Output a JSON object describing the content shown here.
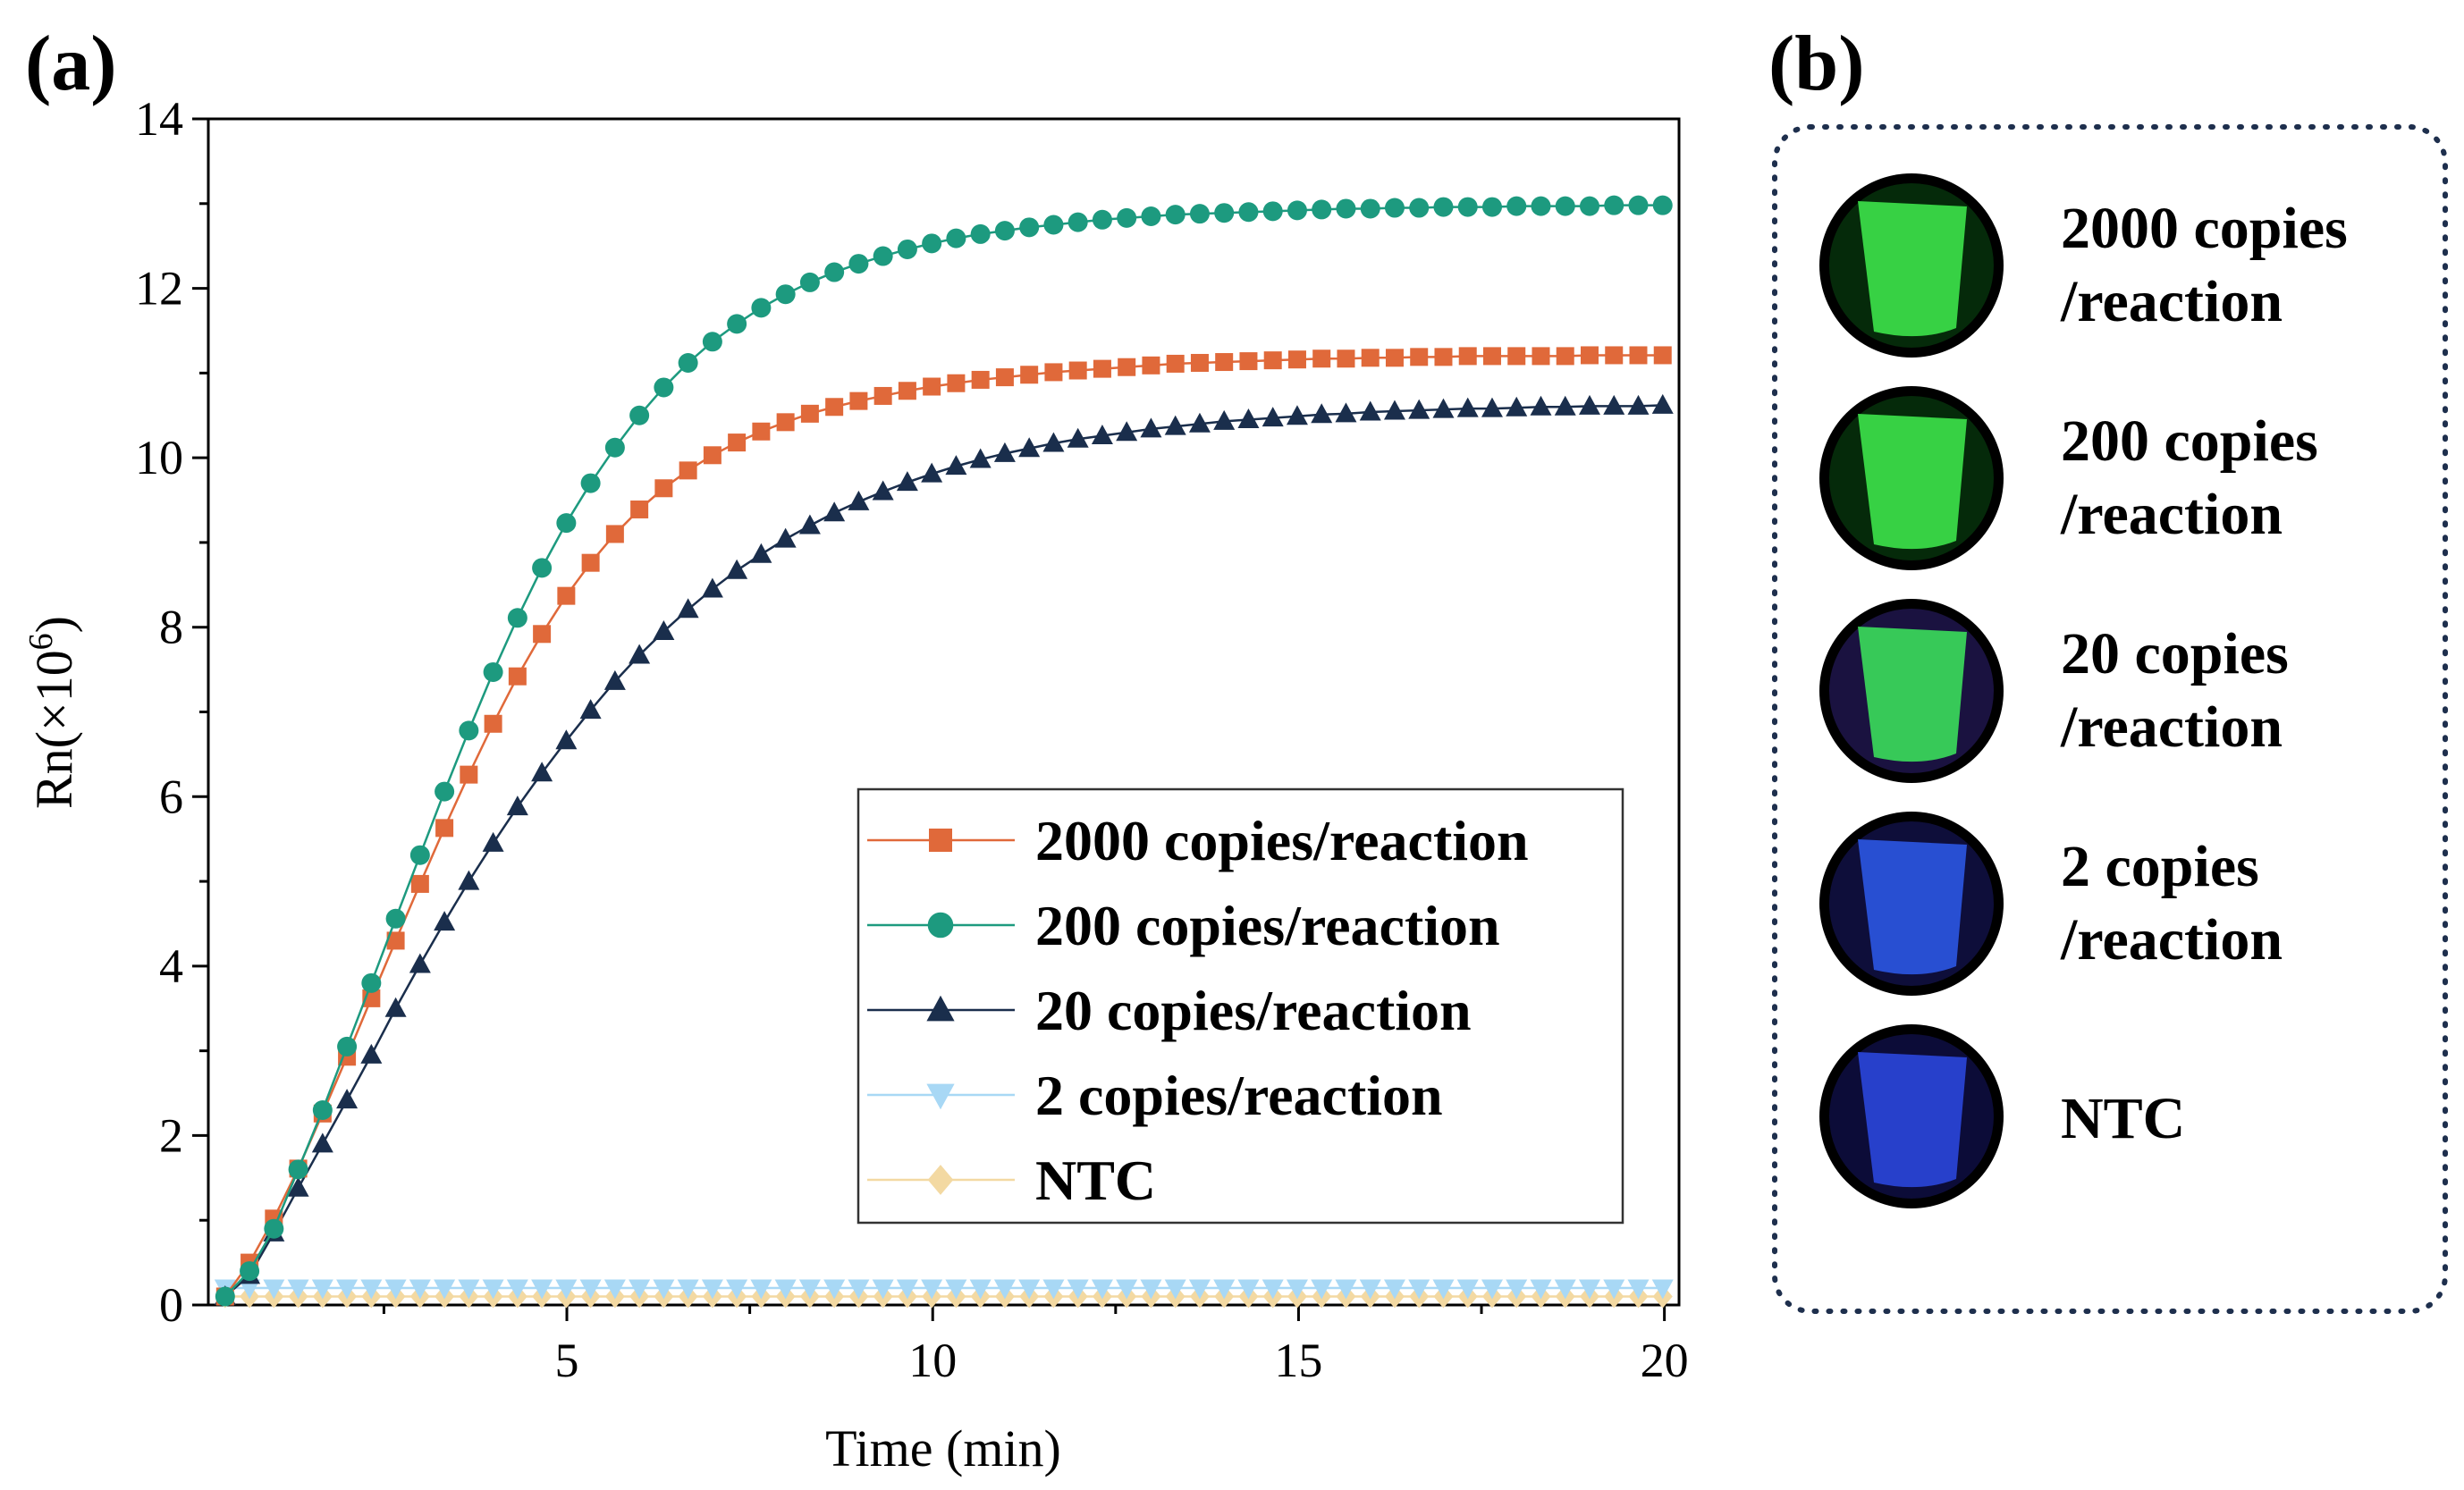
{
  "panel_a_label": "(a)",
  "panel_b_label": "(b)",
  "chart_data": {
    "type": "line",
    "xlabel": "Time (min)",
    "ylabel_base": "Rn(×10",
    "ylabel_exp": "6",
    "ylabel_close": ")",
    "xlim": [
      0.1,
      20.2
    ],
    "ylim": [
      0,
      14
    ],
    "xticks": [
      5,
      10,
      15,
      20
    ],
    "yticks": [
      0,
      2,
      4,
      6,
      8,
      10,
      12,
      14
    ],
    "legend_position": "lower-right",
    "series": [
      {
        "name": "2000 copies/reaction",
        "color": "#e0693a",
        "marker": "square",
        "values": [
          0.1,
          0.5,
          1.02,
          1.61,
          2.26,
          2.93,
          3.62,
          4.3,
          4.97,
          5.63,
          6.26,
          6.86,
          7.42,
          7.92,
          8.37,
          8.76,
          9.1,
          9.39,
          9.64,
          9.85,
          10.03,
          10.18,
          10.31,
          10.42,
          10.52,
          10.6,
          10.67,
          10.73,
          10.79,
          10.84,
          10.88,
          10.92,
          10.95,
          10.98,
          11.01,
          11.03,
          11.05,
          11.07,
          11.09,
          11.11,
          11.12,
          11.13,
          11.14,
          11.15,
          11.16,
          11.17,
          11.17,
          11.18,
          11.18,
          11.19,
          11.19,
          11.2,
          11.2,
          11.2,
          11.2,
          11.2,
          11.21,
          11.21,
          11.21,
          11.21
        ]
      },
      {
        "name": "200 copies/reaction",
        "color": "#1d9a7f",
        "marker": "circle",
        "values": [
          0.1,
          0.4,
          0.9,
          1.6,
          2.3,
          3.05,
          3.8,
          4.56,
          5.31,
          6.06,
          6.78,
          7.47,
          8.11,
          8.7,
          9.23,
          9.7,
          10.12,
          10.5,
          10.83,
          11.12,
          11.37,
          11.58,
          11.77,
          11.93,
          12.07,
          12.19,
          12.29,
          12.38,
          12.46,
          12.53,
          12.59,
          12.64,
          12.68,
          12.72,
          12.75,
          12.78,
          12.81,
          12.83,
          12.85,
          12.87,
          12.88,
          12.89,
          12.9,
          12.91,
          12.92,
          12.93,
          12.94,
          12.94,
          12.95,
          12.95,
          12.96,
          12.96,
          12.96,
          12.97,
          12.97,
          12.97,
          12.97,
          12.98,
          12.98,
          12.98
        ]
      },
      {
        "name": "20 copies/reaction",
        "color": "#1a2e4c",
        "marker": "triangle-up",
        "values": [
          0.1,
          0.35,
          0.85,
          1.38,
          1.9,
          2.42,
          2.95,
          3.5,
          4.02,
          4.52,
          5.0,
          5.45,
          5.88,
          6.28,
          6.66,
          7.02,
          7.36,
          7.67,
          7.95,
          8.21,
          8.45,
          8.67,
          8.86,
          9.04,
          9.2,
          9.35,
          9.48,
          9.6,
          9.71,
          9.81,
          9.9,
          9.98,
          10.05,
          10.11,
          10.17,
          10.22,
          10.26,
          10.3,
          10.34,
          10.37,
          10.4,
          10.43,
          10.45,
          10.47,
          10.49,
          10.51,
          10.52,
          10.54,
          10.55,
          10.56,
          10.57,
          10.58,
          10.58,
          10.59,
          10.6,
          10.6,
          10.61,
          10.61,
          10.61,
          10.62
        ]
      },
      {
        "name": "2 copies/reaction",
        "color": "#a8d8f5",
        "marker": "triangle-down",
        "values": [
          0.2,
          0.2,
          0.2,
          0.2,
          0.2,
          0.2,
          0.2,
          0.2,
          0.2,
          0.2,
          0.2,
          0.2,
          0.2,
          0.2,
          0.2,
          0.2,
          0.2,
          0.2,
          0.2,
          0.2,
          0.2,
          0.2,
          0.2,
          0.2,
          0.2,
          0.2,
          0.2,
          0.2,
          0.2,
          0.2,
          0.2,
          0.2,
          0.2,
          0.2,
          0.2,
          0.2,
          0.2,
          0.2,
          0.2,
          0.2,
          0.2,
          0.2,
          0.2,
          0.2,
          0.2,
          0.2,
          0.2,
          0.2,
          0.2,
          0.2,
          0.2,
          0.2,
          0.2,
          0.2,
          0.2,
          0.2,
          0.2,
          0.2,
          0.2,
          0.2
        ]
      },
      {
        "name": "NTC",
        "color": "#f3d9a2",
        "marker": "diamond",
        "values": [
          0.1,
          0.1,
          0.1,
          0.1,
          0.1,
          0.1,
          0.1,
          0.1,
          0.1,
          0.1,
          0.1,
          0.1,
          0.1,
          0.1,
          0.1,
          0.1,
          0.1,
          0.1,
          0.1,
          0.1,
          0.1,
          0.1,
          0.1,
          0.1,
          0.1,
          0.1,
          0.1,
          0.1,
          0.1,
          0.1,
          0.1,
          0.1,
          0.1,
          0.1,
          0.1,
          0.1,
          0.1,
          0.1,
          0.1,
          0.1,
          0.1,
          0.1,
          0.1,
          0.1,
          0.1,
          0.1,
          0.1,
          0.1,
          0.1,
          0.1,
          0.1,
          0.1,
          0.1,
          0.1,
          0.1,
          0.1,
          0.1,
          0.1,
          0.1,
          0.1
        ]
      }
    ],
    "x_start": 0.33,
    "x_step": 0.333
  },
  "tubes": [
    {
      "label_line1": "2000 copies",
      "label_line2": "/reaction",
      "glow": "#3ce04a",
      "bg": "#052a0a"
    },
    {
      "label_line1": "200 copies",
      "label_line2": "/reaction",
      "glow": "#3ce04a",
      "bg": "#052a0a"
    },
    {
      "label_line1": "20 copies",
      "label_line2": "/reaction",
      "glow": "#3ad95a",
      "bg": "#1a1240"
    },
    {
      "label_line1": "2 copies",
      "label_line2": "/reaction",
      "glow": "#2a55e0",
      "bg": "#0e0e3a"
    },
    {
      "label_line1": "NTC",
      "label_line2": "",
      "glow": "#2a45d8",
      "bg": "#0c0c38"
    }
  ]
}
